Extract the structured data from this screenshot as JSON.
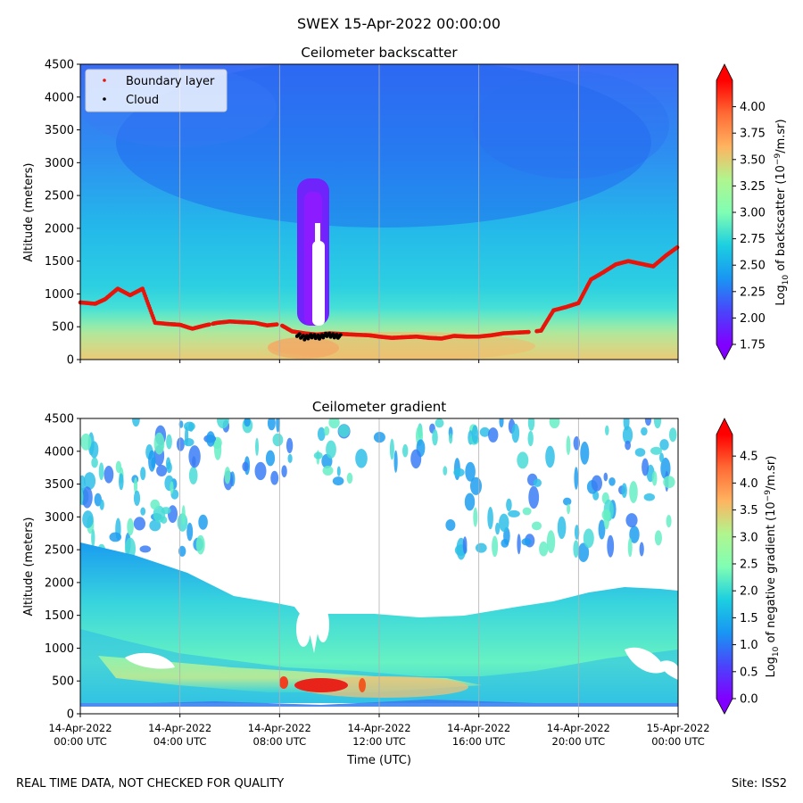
{
  "page": {
    "suptitle": "SWEX 15-Apr-2022 00:00:00",
    "footer_left": "REAL TIME DATA, NOT CHECKED FOR QUALITY",
    "footer_right": "Site: ISS2"
  },
  "chart_data": [
    {
      "type": "heatmap",
      "title": "Ceilometer backscatter",
      "ylabel": "Altitude (meters)",
      "ylim": [
        0,
        4500
      ],
      "yticks": [
        0,
        500,
        1000,
        1500,
        2000,
        2500,
        3000,
        3500,
        4000,
        4500
      ],
      "xlim_hours": [
        0,
        24
      ],
      "grid": "vertical at 4 h ticks",
      "colormap": "rainbow",
      "colorbar": {
        "label": "Log10 of backscatter (10^-9/m.sr)",
        "label_parts": {
          "a": "Log",
          "b": "10",
          "c": " of backscatter (10",
          "d": "−9",
          "e": "/m.sr)"
        },
        "min": 1.75,
        "max": 4.25,
        "ticks": [
          1.75,
          2.0,
          2.25,
          2.5,
          2.75,
          3.0,
          3.25,
          3.5,
          3.75,
          4.0
        ],
        "tick_labels": [
          "1.75",
          "2.00",
          "2.25",
          "2.50",
          "2.75",
          "3.00",
          "3.25",
          "3.50",
          "3.75",
          "4.00"
        ]
      },
      "legend": {
        "placement": "top-left",
        "entries": [
          {
            "label": "Boundary layer",
            "color": "#e8150b"
          },
          {
            "label": "Cloud",
            "color": "#000000"
          }
        ]
      },
      "series": [
        {
          "name": "Boundary layer",
          "color": "#e8150b",
          "x_hours": [
            0,
            0.6,
            1.0,
            1.5,
            2.0,
            2.5,
            3.0,
            3.6,
            4.0,
            4.5,
            5.0,
            5.5,
            6.0,
            6.5,
            7.0,
            7.5,
            8.0,
            8.5,
            9.0,
            9.5,
            10.0,
            10.5,
            11.0,
            11.6,
            12.0,
            12.5,
            13.0,
            13.5,
            14.0,
            14.5,
            15.0,
            15.5,
            16.0,
            16.5,
            17.0,
            17.5,
            18.0,
            18.5,
            19.0,
            19.5,
            20.0,
            20.5,
            21.0,
            21.5,
            22.0,
            22.5,
            23.0,
            23.5,
            24.0
          ],
          "y": [
            870,
            850,
            920,
            1080,
            980,
            1080,
            560,
            540,
            530,
            470,
            520,
            560,
            580,
            570,
            560,
            520,
            540,
            430,
            400,
            380,
            400,
            390,
            380,
            370,
            350,
            330,
            340,
            350,
            330,
            320,
            360,
            350,
            350,
            370,
            400,
            410,
            420,
            440,
            750,
            800,
            860,
            1220,
            1330,
            1450,
            1500,
            1460,
            1420,
            1580,
            1720
          ]
        },
        {
          "name": "Cloud",
          "color": "#000000",
          "x_hours": [
            8.7,
            9.0,
            9.3,
            9.6,
            9.9,
            10.2,
            10.5
          ],
          "y": [
            380,
            330,
            360,
            340,
            380,
            360,
            350
          ]
        }
      ]
    },
    {
      "type": "heatmap",
      "title": "Ceilometer gradient",
      "ylabel": "Altitude (meters)",
      "xlabel": "Time (UTC)",
      "ylim": [
        0,
        4500
      ],
      "yticks": [
        0,
        500,
        1000,
        1500,
        2000,
        2500,
        3000,
        3500,
        4000,
        4500
      ],
      "xlim_hours": [
        0,
        24
      ],
      "grid": "vertical at 4 h ticks",
      "colormap": "rainbow",
      "xticks_hours": [
        0,
        4,
        8,
        12,
        16,
        20,
        24
      ],
      "xtick_labels": [
        [
          "14-Apr-2022",
          "00:00 UTC"
        ],
        [
          "14-Apr-2022",
          "04:00 UTC"
        ],
        [
          "14-Apr-2022",
          "08:00 UTC"
        ],
        [
          "14-Apr-2022",
          "12:00 UTC"
        ],
        [
          "14-Apr-2022",
          "16:00 UTC"
        ],
        [
          "14-Apr-2022",
          "20:00 UTC"
        ],
        [
          "15-Apr-2022",
          "00:00 UTC"
        ]
      ],
      "colorbar": {
        "label": "Log10 of negative gradient (10^-9/m.sr)",
        "label_parts": {
          "a": "Log",
          "b": "10",
          "c": " of negative gradient (10",
          "d": "−9",
          "e": "/m.sr)"
        },
        "min": 0.0,
        "max": 4.9,
        "ticks": [
          0.0,
          0.5,
          1.0,
          1.5,
          2.0,
          2.5,
          3.0,
          3.5,
          4.0,
          4.5
        ],
        "tick_labels": [
          "0.0",
          "0.5",
          "1.0",
          "1.5",
          "2.0",
          "2.5",
          "3.0",
          "3.5",
          "4.0",
          "4.5"
        ]
      }
    }
  ]
}
